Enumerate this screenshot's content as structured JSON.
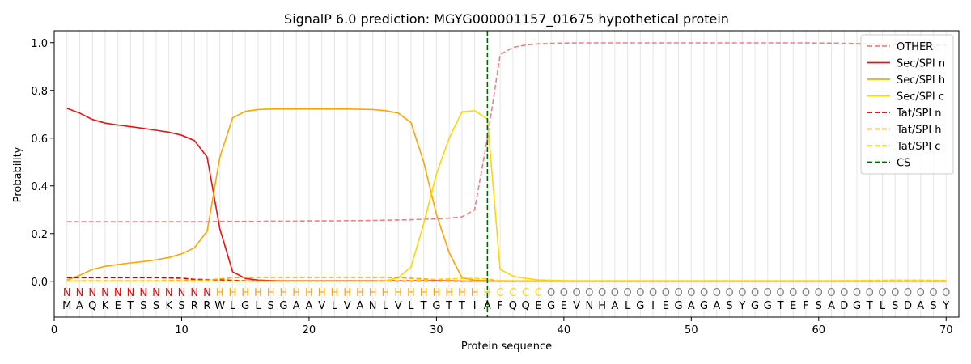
{
  "chart_data": {
    "type": "line",
    "title": "SignalP 6.0 prediction: MGYG000001157_01675 hypothetical protein",
    "xlabel": "Protein sequence",
    "ylabel": "Probability",
    "xlim": [
      0,
      71
    ],
    "ylim": [
      -0.15,
      1.05
    ],
    "xticks": [
      0,
      10,
      20,
      30,
      40,
      50,
      60,
      70
    ],
    "yticks": [
      0.0,
      0.2,
      0.4,
      0.6,
      0.8,
      1.0
    ],
    "ytick_labels": [
      "0.0",
      "0.2",
      "0.4",
      "0.6",
      "0.8",
      "1.0"
    ],
    "grid": "vertical lines at each residue",
    "legend_position": "top-right",
    "cs_position": 34,
    "sequence": "MAQKETSSKSRRWLGLSGAAVLVANLVLTGTTIAFQQEGEVNHALGIEGAGASYGGTEFSADGTLSDASY",
    "labels": "NNNNNNNNNNNNHHHHHHHHHHHHHHHHHHHHHHCCCCOOOOOOOOOOOOOOOOOOOOOOOOOOOOOOOOOOO",
    "label_colors": {
      "N": "#ff0000",
      "H": "#ffa500",
      "C": "#ffd700",
      "O": "#808080"
    },
    "series": [
      {
        "name": "OTHER",
        "color": "#f08080",
        "dash": true,
        "values": [
          0.25,
          0.25,
          0.25,
          0.25,
          0.25,
          0.25,
          0.25,
          0.25,
          0.25,
          0.25,
          0.25,
          0.25,
          0.251,
          0.251,
          0.251,
          0.251,
          0.252,
          0.252,
          0.252,
          0.253,
          0.253,
          0.253,
          0.254,
          0.254,
          0.255,
          0.256,
          0.257,
          0.258,
          0.26,
          0.262,
          0.265,
          0.27,
          0.3,
          0.6,
          0.95,
          0.98,
          0.99,
          0.995,
          0.997,
          0.998,
          0.999,
          0.999,
          0.999,
          0.999,
          0.999,
          0.999,
          0.999,
          0.999,
          0.999,
          0.999,
          0.999,
          0.999,
          0.999,
          0.999,
          0.999,
          0.999,
          0.999,
          0.999,
          0.999,
          0.998,
          0.998,
          0.997,
          0.996,
          0.995,
          0.994,
          0.993,
          0.992,
          0.991,
          0.99,
          0.99
        ]
      },
      {
        "name": "Sec/SPI n",
        "color": "#ee1111",
        "dash": false,
        "values": [
          0.725,
          0.705,
          0.678,
          0.663,
          0.655,
          0.648,
          0.641,
          0.633,
          0.625,
          0.612,
          0.59,
          0.52,
          0.22,
          0.04,
          0.012,
          0.005,
          0.003,
          0.002,
          0.002,
          0.002,
          0.002,
          0.002,
          0.002,
          0.002,
          0.002,
          0.002,
          0.002,
          0.002,
          0.002,
          0.002,
          0.002,
          0.001,
          0.001,
          0.001,
          0.001,
          0.001,
          0.001,
          0.001,
          0.001,
          0.001,
          0.001,
          0.001,
          0.001,
          0.001,
          0.001,
          0.001,
          0.001,
          0.001,
          0.001,
          0.001,
          0.001,
          0.001,
          0.001,
          0.001,
          0.001,
          0.001,
          0.001,
          0.001,
          0.001,
          0.001,
          0.001,
          0.001,
          0.001,
          0.001,
          0.001,
          0.001,
          0.001,
          0.001,
          0.001,
          0.001
        ]
      },
      {
        "name": "Sec/SPI h",
        "color": "#ffa500",
        "dash": false,
        "values": [
          0.005,
          0.025,
          0.05,
          0.063,
          0.07,
          0.077,
          0.083,
          0.09,
          0.1,
          0.115,
          0.14,
          0.21,
          0.52,
          0.685,
          0.712,
          0.72,
          0.722,
          0.722,
          0.722,
          0.722,
          0.722,
          0.722,
          0.722,
          0.721,
          0.72,
          0.715,
          0.705,
          0.665,
          0.5,
          0.28,
          0.12,
          0.015,
          0.005,
          0.002,
          0.001,
          0.001,
          0.001,
          0.001,
          0.001,
          0.001,
          0.001,
          0.001,
          0.001,
          0.001,
          0.001,
          0.001,
          0.001,
          0.001,
          0.001,
          0.001,
          0.001,
          0.001,
          0.001,
          0.001,
          0.001,
          0.001,
          0.001,
          0.001,
          0.001,
          0.001,
          0.001,
          0.001,
          0.001,
          0.001,
          0.001,
          0.001,
          0.001,
          0.001,
          0.001,
          0.001
        ]
      },
      {
        "name": "Sec/SPI c",
        "color": "#ffd700",
        "dash": false,
        "values": [
          0.001,
          0.001,
          0.001,
          0.001,
          0.001,
          0.001,
          0.001,
          0.001,
          0.001,
          0.001,
          0.001,
          0.001,
          0.001,
          0.001,
          0.001,
          0.001,
          0.001,
          0.001,
          0.001,
          0.001,
          0.001,
          0.001,
          0.001,
          0.001,
          0.001,
          0.002,
          0.015,
          0.06,
          0.24,
          0.45,
          0.6,
          0.71,
          0.715,
          0.68,
          0.05,
          0.022,
          0.012,
          0.006,
          0.004,
          0.003,
          0.002,
          0.002,
          0.002,
          0.002,
          0.002,
          0.002,
          0.002,
          0.002,
          0.002,
          0.002,
          0.002,
          0.002,
          0.002,
          0.002,
          0.002,
          0.002,
          0.002,
          0.002,
          0.002,
          0.002,
          0.002,
          0.002,
          0.002,
          0.002,
          0.002,
          0.002,
          0.002,
          0.002,
          0.002,
          0.002
        ]
      },
      {
        "name": "Tat/SPI n",
        "color": "#cc0000",
        "dash": true,
        "values": [
          0.015,
          0.015,
          0.015,
          0.015,
          0.015,
          0.015,
          0.015,
          0.015,
          0.014,
          0.013,
          0.008,
          0.007,
          0.006,
          0.004,
          0.002,
          0.001,
          0.001,
          0.001,
          0.001,
          0.001,
          0.001,
          0.001,
          0.001,
          0.001,
          0.001,
          0.001,
          0.001,
          0.001,
          0.001,
          0.001,
          0.001,
          0.001,
          0.001,
          0.001,
          0.001,
          0.001,
          0.001,
          0.001,
          0.001,
          0.001,
          0.001,
          0.001,
          0.001,
          0.001,
          0.001,
          0.001,
          0.001,
          0.001,
          0.001,
          0.001,
          0.001,
          0.001,
          0.001,
          0.001,
          0.001,
          0.001,
          0.001,
          0.001,
          0.001,
          0.001,
          0.001,
          0.001,
          0.001,
          0.001,
          0.001,
          0.001,
          0.001,
          0.001,
          0.001,
          0.001
        ]
      },
      {
        "name": "Tat/SPI h",
        "color": "#ffa500",
        "dash": true,
        "values": [
          0.001,
          0.002,
          0.002,
          0.002,
          0.002,
          0.002,
          0.002,
          0.002,
          0.003,
          0.003,
          0.004,
          0.005,
          0.01,
          0.015,
          0.016,
          0.016,
          0.016,
          0.016,
          0.016,
          0.016,
          0.016,
          0.016,
          0.016,
          0.016,
          0.016,
          0.016,
          0.015,
          0.013,
          0.01,
          0.007,
          0.004,
          0.002,
          0.001,
          0.001,
          0.001,
          0.001,
          0.001,
          0.001,
          0.001,
          0.001,
          0.001,
          0.001,
          0.001,
          0.001,
          0.001,
          0.001,
          0.001,
          0.001,
          0.001,
          0.001,
          0.001,
          0.001,
          0.001,
          0.001,
          0.001,
          0.001,
          0.001,
          0.001,
          0.001,
          0.001,
          0.001,
          0.001,
          0.001,
          0.001,
          0.001,
          0.001,
          0.001,
          0.001,
          0.001,
          0.001
        ]
      },
      {
        "name": "Tat/SPI c",
        "color": "#ffd700",
        "dash": true,
        "values": [
          0.001,
          0.001,
          0.001,
          0.001,
          0.001,
          0.001,
          0.001,
          0.001,
          0.001,
          0.001,
          0.001,
          0.001,
          0.001,
          0.001,
          0.001,
          0.001,
          0.001,
          0.001,
          0.001,
          0.001,
          0.001,
          0.001,
          0.001,
          0.001,
          0.001,
          0.001,
          0.002,
          0.003,
          0.005,
          0.008,
          0.01,
          0.012,
          0.012,
          0.01,
          0.003,
          0.002,
          0.002,
          0.002,
          0.002,
          0.002,
          0.002,
          0.002,
          0.002,
          0.002,
          0.002,
          0.002,
          0.002,
          0.002,
          0.002,
          0.002,
          0.002,
          0.002,
          0.002,
          0.002,
          0.002,
          0.002,
          0.002,
          0.002,
          0.002,
          0.002,
          0.002,
          0.003,
          0.003,
          0.004,
          0.004,
          0.005,
          0.005,
          0.005,
          0.004,
          0.004
        ]
      },
      {
        "name": "CS",
        "color": "#006400",
        "dash": true,
        "values": []
      }
    ]
  }
}
